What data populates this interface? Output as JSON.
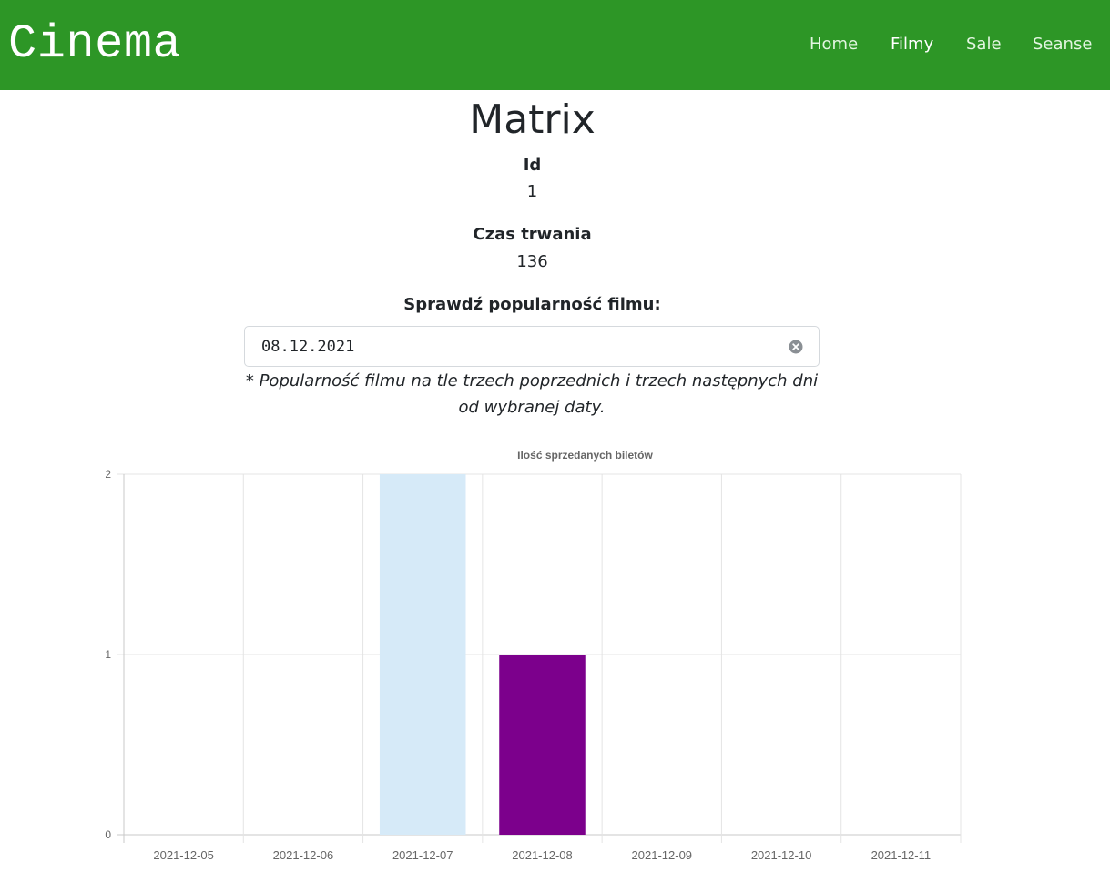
{
  "brand": "Cinema",
  "nav": [
    {
      "label": "Home",
      "active": false
    },
    {
      "label": "Filmy",
      "active": true
    },
    {
      "label": "Sale",
      "active": false
    },
    {
      "label": "Seanse",
      "active": false
    }
  ],
  "movie": {
    "title": "Matrix",
    "id_label": "Id",
    "id_value": "1",
    "duration_label": "Czas trwania",
    "duration_value": "136"
  },
  "popularity": {
    "label": "Sprawdź popularność filmu:",
    "date_value": "08.12.2021",
    "note": "* Popularność filmu na tle trzech poprzednich i trzech następnych dni od wybranej daty."
  },
  "colors": {
    "navbar": "#2d9626",
    "highlight_bar": "#7c008c",
    "shade_bar": "#d6eaf8"
  },
  "chart_data": {
    "type": "bar",
    "title": "Ilość sprzedanych biletów",
    "categories": [
      "2021-12-05",
      "2021-12-06",
      "2021-12-07",
      "2021-12-08",
      "2021-12-09",
      "2021-12-10",
      "2021-12-11"
    ],
    "series": [
      {
        "values": [
          0,
          0,
          2,
          1,
          0,
          0,
          0
        ],
        "colors": [
          "#d6eaf8",
          "#d6eaf8",
          "#d6eaf8",
          "#7c008c",
          "#d6eaf8",
          "#d6eaf8",
          "#d6eaf8"
        ]
      }
    ],
    "ylim": [
      0,
      2
    ],
    "yticks": [
      "0",
      "1",
      "2"
    ],
    "grid": true,
    "legend": "none"
  }
}
